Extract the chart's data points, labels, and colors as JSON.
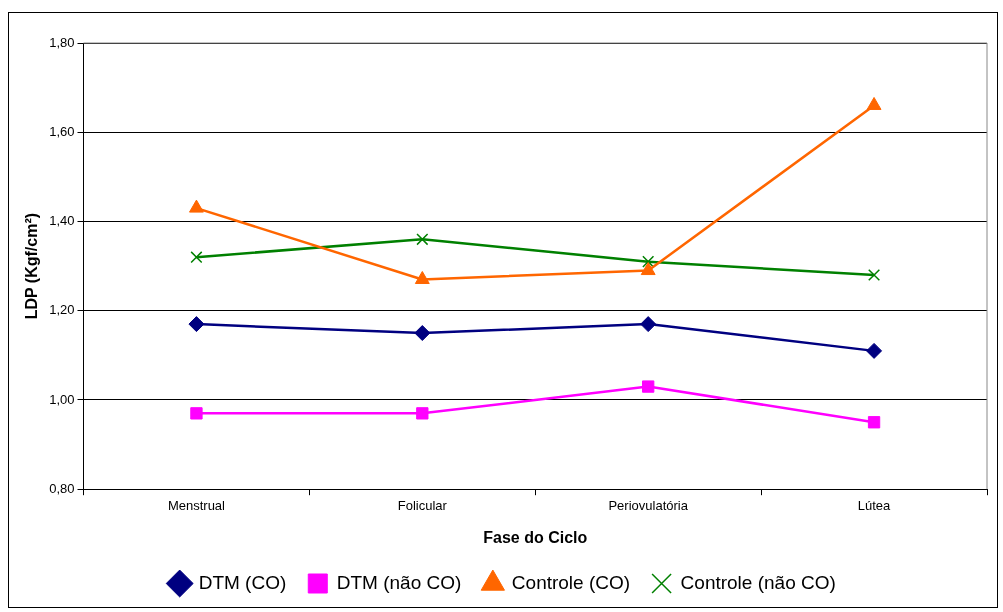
{
  "chart_data": {
    "type": "line",
    "xlabel": "Fase do Ciclo",
    "ylabel": "LDP (Kgf/cm²)",
    "categories": [
      "Menstrual",
      "Folicular",
      "Periovulatória",
      "Lútea"
    ],
    "series": [
      {
        "name": "DTM (CO)",
        "color": "#000080",
        "marker": "diamond",
        "values": [
          1.17,
          1.15,
          1.17,
          1.11
        ]
      },
      {
        "name": "DTM (não CO)",
        "color": "#ff00ff",
        "marker": "square",
        "values": [
          0.97,
          0.97,
          1.03,
          0.95
        ]
      },
      {
        "name": "Controle (CO)",
        "color": "#ff6600",
        "marker": "triangle",
        "values": [
          1.43,
          1.27,
          1.29,
          1.66
        ]
      },
      {
        "name": "Controle (não CO)",
        "color": "#008000",
        "marker": "cross",
        "values": [
          1.32,
          1.36,
          1.31,
          1.28
        ]
      }
    ],
    "ylim": [
      0.8,
      1.8
    ],
    "yticks": [
      {
        "value": 0.8,
        "label": "0,80"
      },
      {
        "value": 1.0,
        "label": "1,00"
      },
      {
        "value": 1.2,
        "label": "1,20"
      },
      {
        "value": 1.4,
        "label": "1,40"
      },
      {
        "value": 1.6,
        "label": "1,60"
      },
      {
        "value": 1.8,
        "label": "1,80"
      }
    ],
    "grid": "y",
    "legend": "bottom"
  }
}
